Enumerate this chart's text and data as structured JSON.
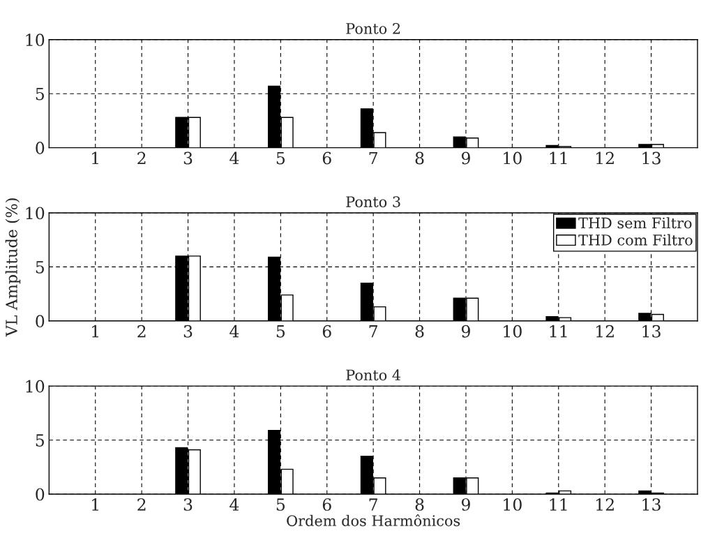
{
  "chart_data": [
    {
      "type": "bar",
      "title": "Ponto 2",
      "xlim": [
        0,
        14
      ],
      "xticks": [
        1,
        2,
        3,
        4,
        5,
        6,
        7,
        8,
        9,
        10,
        11,
        12,
        13
      ],
      "ylim": [
        0,
        10
      ],
      "yticks": [
        0,
        5,
        10
      ],
      "grid": true,
      "legend": false,
      "series": [
        {
          "color": "#000000",
          "x": [
            3,
            5,
            7,
            9,
            11,
            13
          ],
          "values": [
            2.8,
            5.7,
            3.6,
            1.0,
            0.2,
            0.3
          ]
        },
        {
          "color": "#ffffff",
          "x": [
            3,
            5,
            7,
            9,
            11,
            13
          ],
          "values": [
            2.8,
            2.8,
            1.4,
            0.9,
            0.1,
            0.3
          ]
        }
      ]
    },
    {
      "type": "bar",
      "title": "Ponto 3",
      "ylabel": "VL Amplitude (%)",
      "xlim": [
        0,
        14
      ],
      "xticks": [
        1,
        2,
        3,
        4,
        5,
        6,
        7,
        8,
        9,
        10,
        11,
        12,
        13
      ],
      "ylim": [
        0,
        10
      ],
      "yticks": [
        0,
        5,
        10
      ],
      "grid": true,
      "legend": "top right",
      "series": [
        {
          "name": "THD sem Filtro",
          "color": "#000000",
          "x": [
            3,
            5,
            7,
            9,
            11,
            13
          ],
          "values": [
            6.0,
            5.9,
            3.5,
            2.1,
            0.4,
            0.7
          ]
        },
        {
          "name": "THD com Filtro",
          "color": "#ffffff",
          "x": [
            3,
            5,
            7,
            9,
            11,
            13
          ],
          "values": [
            6.0,
            2.4,
            1.3,
            2.1,
            0.3,
            0.6
          ]
        }
      ]
    },
    {
      "type": "bar",
      "title": "Ponto 4",
      "xlabel": "Ordem dos Harmônicos",
      "xlim": [
        0,
        14
      ],
      "xticks": [
        1,
        2,
        3,
        4,
        5,
        6,
        7,
        8,
        9,
        10,
        11,
        12,
        13
      ],
      "ylim": [
        0,
        10
      ],
      "yticks": [
        0,
        5,
        10
      ],
      "grid": true,
      "legend": false,
      "series": [
        {
          "color": "#000000",
          "x": [
            3,
            5,
            7,
            9,
            11,
            13
          ],
          "values": [
            4.3,
            5.9,
            3.5,
            1.5,
            0.1,
            0.3
          ]
        },
        {
          "color": "#ffffff",
          "x": [
            3,
            5,
            7,
            9,
            11,
            13
          ],
          "values": [
            4.1,
            2.3,
            1.5,
            1.5,
            0.3,
            0.1
          ]
        }
      ]
    }
  ]
}
